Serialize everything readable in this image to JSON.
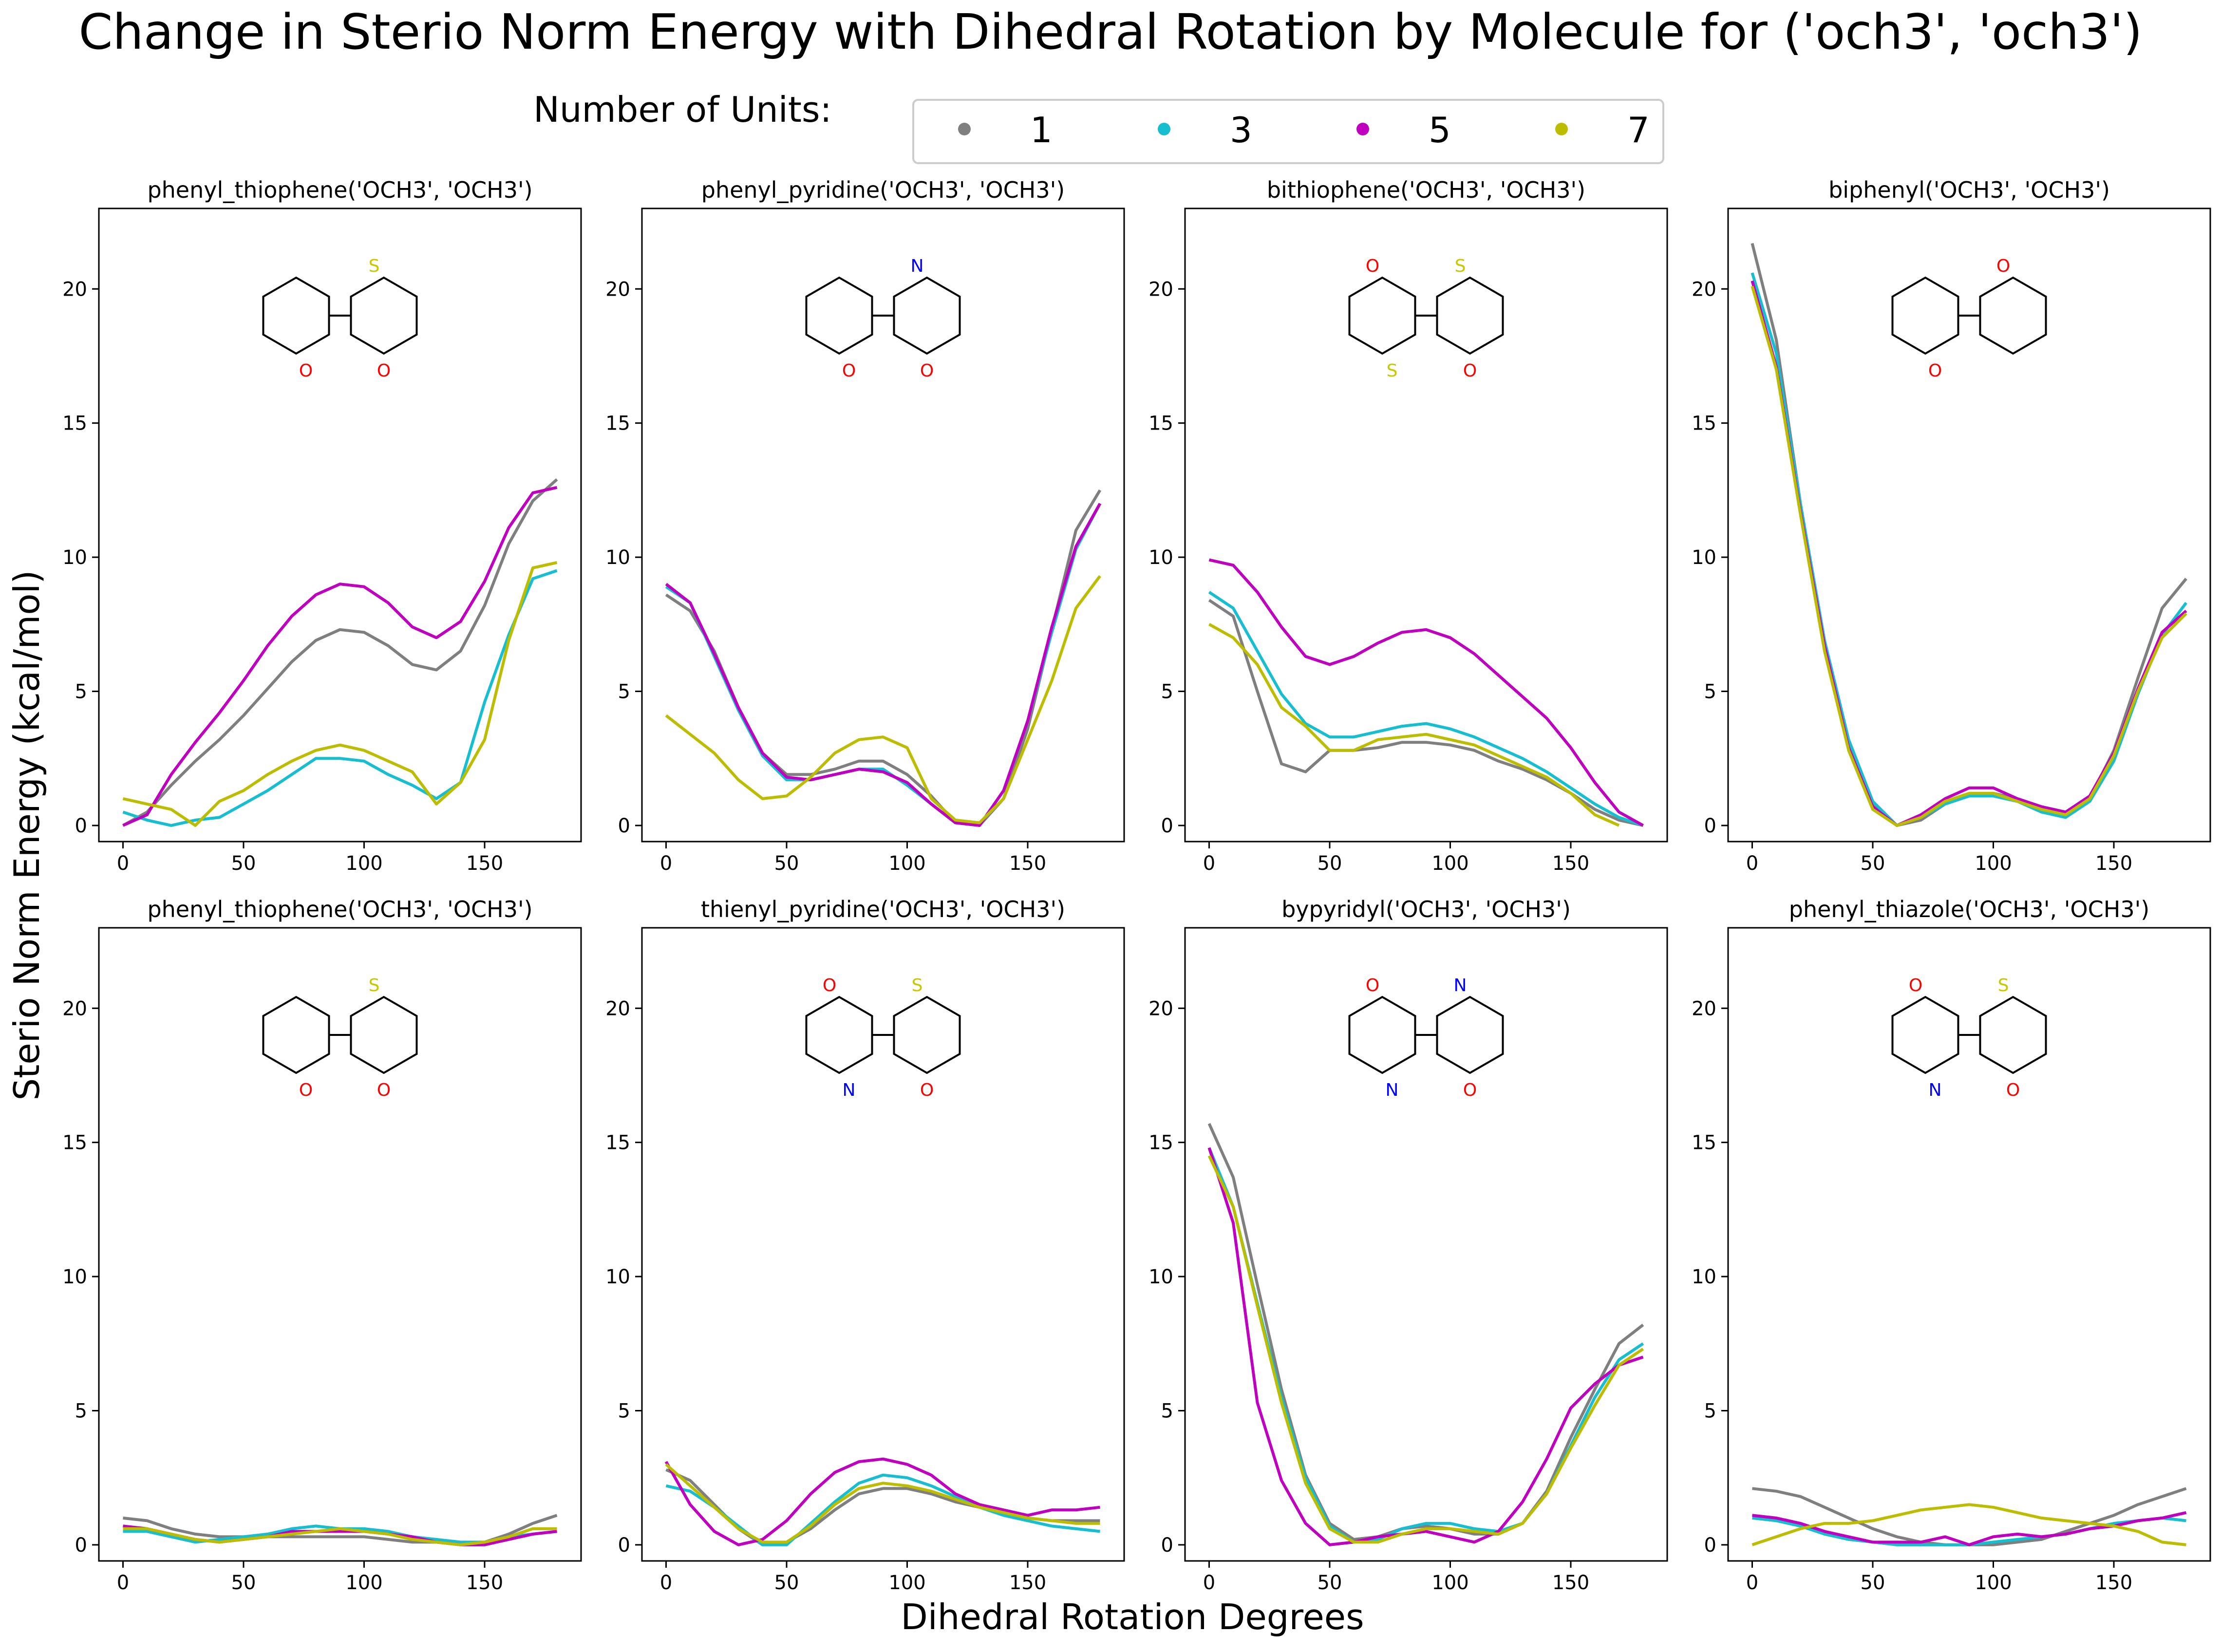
{
  "title": "Change in Sterio Norm Energy with Dihedral Rotation by Molecule for ('och3', 'och3')",
  "xlabel": "Dihedral Rotation Degrees",
  "ylabel": "Sterio Norm Energy (kcal/mol)",
  "legend": {
    "title": "Number of Units:",
    "placement": "top-center",
    "entries": [
      {
        "label": "1",
        "color": "#7f7f7f"
      },
      {
        "label": "3",
        "color": "#17becf"
      },
      {
        "label": "5",
        "color": "#bf00bf"
      },
      {
        "label": "7",
        "color": "#bcbd00"
      }
    ]
  },
  "chart_data": {
    "type": "line",
    "x": [
      0,
      10,
      20,
      30,
      40,
      50,
      60,
      70,
      80,
      90,
      100,
      110,
      120,
      130,
      140,
      150,
      160,
      170,
      180
    ],
    "x_ticks": [
      0,
      50,
      100,
      150
    ],
    "y_ticks": [
      0,
      5,
      10,
      15,
      20
    ],
    "xlim": [
      -10,
      190
    ],
    "ylim": [
      -0.6,
      23
    ],
    "grid": false,
    "panels": [
      {
        "title": "phenyl_thiophene('OCH3', 'OCH3')",
        "molecule_atoms": [
          "S",
          "O",
          "O"
        ],
        "series": [
          {
            "name": "1",
            "values": [
              0.0,
              0.5,
              1.5,
              2.4,
              3.2,
              4.1,
              5.1,
              6.1,
              6.9,
              7.3,
              7.2,
              6.7,
              6.0,
              5.8,
              6.5,
              8.2,
              10.5,
              12.1,
              12.9
            ]
          },
          {
            "name": "3",
            "values": [
              0.5,
              0.2,
              0.0,
              0.2,
              0.3,
              0.8,
              1.3,
              1.9,
              2.5,
              2.5,
              2.4,
              1.9,
              1.5,
              1.0,
              1.6,
              4.6,
              7.1,
              9.2,
              9.5
            ]
          },
          {
            "name": "5",
            "values": [
              0.0,
              0.4,
              1.9,
              3.1,
              4.2,
              5.4,
              6.7,
              7.8,
              8.6,
              9.0,
              8.9,
              8.3,
              7.4,
              7.0,
              7.6,
              9.1,
              11.1,
              12.4,
              12.6
            ]
          },
          {
            "name": "7",
            "values": [
              1.0,
              0.8,
              0.6,
              0.0,
              0.9,
              1.3,
              1.9,
              2.4,
              2.8,
              3.0,
              2.8,
              2.4,
              2.0,
              0.8,
              1.6,
              3.2,
              6.9,
              9.6,
              9.8
            ]
          }
        ]
      },
      {
        "title": "phenyl_pyridine('OCH3', 'OCH3')",
        "molecule_atoms": [
          "N",
          "O",
          "O"
        ],
        "series": [
          {
            "name": "1",
            "values": [
              8.6,
              8.0,
              6.5,
              4.4,
              2.7,
              1.9,
              1.9,
              2.1,
              2.4,
              2.4,
              1.9,
              1.1,
              0.1,
              0.0,
              1.0,
              3.6,
              7.3,
              11.0,
              12.5
            ]
          },
          {
            "name": "3",
            "values": [
              8.9,
              8.3,
              6.3,
              4.3,
              2.6,
              1.7,
              1.7,
              1.9,
              2.1,
              2.1,
              1.5,
              0.8,
              0.1,
              0.0,
              1.3,
              3.9,
              7.2,
              10.3,
              12.0
            ]
          },
          {
            "name": "5",
            "values": [
              9.0,
              8.3,
              6.4,
              4.4,
              2.7,
              1.8,
              1.7,
              1.9,
              2.1,
              2.0,
              1.6,
              0.8,
              0.1,
              0.0,
              1.3,
              3.9,
              7.4,
              10.4,
              12.0
            ]
          },
          {
            "name": "7",
            "values": [
              4.1,
              3.4,
              2.7,
              1.7,
              1.0,
              1.1,
              1.8,
              2.7,
              3.2,
              3.3,
              2.9,
              1.0,
              0.2,
              0.1,
              1.0,
              3.2,
              5.4,
              8.1,
              9.3
            ]
          }
        ]
      },
      {
        "title": "bithiophene('OCH3', 'OCH3')",
        "molecule_atoms": [
          "S",
          "S",
          "O",
          "O"
        ],
        "series": [
          {
            "name": "1",
            "values": [
              8.4,
              7.8,
              5.0,
              2.3,
              2.0,
              2.8,
              2.8,
              2.9,
              3.1,
              3.1,
              3.0,
              2.8,
              2.4,
              2.1,
              1.7,
              1.2,
              0.6,
              0.2,
              0.0
            ]
          },
          {
            "name": "3",
            "values": [
              8.7,
              8.1,
              6.5,
              4.9,
              3.8,
              3.3,
              3.3,
              3.5,
              3.7,
              3.8,
              3.6,
              3.3,
              2.9,
              2.5,
              2.0,
              1.4,
              0.8,
              0.3,
              0.0
            ]
          },
          {
            "name": "5",
            "values": [
              9.9,
              9.7,
              8.7,
              7.4,
              6.3,
              6.0,
              6.3,
              6.8,
              7.2,
              7.3,
              7.0,
              6.4,
              5.6,
              4.8,
              4.0,
              2.9,
              1.6,
              0.5,
              0.0
            ]
          },
          {
            "name": "7",
            "values": [
              7.5,
              7.0,
              6.0,
              4.4,
              3.7,
              2.8,
              2.8,
              3.2,
              3.3,
              3.4,
              3.2,
              3.0,
              2.6,
              2.2,
              1.8,
              1.2,
              0.4,
              0.0,
              null
            ]
          }
        ]
      },
      {
        "title": "biphenyl('OCH3', 'OCH3')",
        "molecule_atoms": [
          "O",
          "O"
        ],
        "series": [
          {
            "name": "1",
            "values": [
              21.7,
              18.1,
              12.0,
              6.8,
              3.0,
              0.8,
              0.0,
              0.2,
              0.8,
              1.1,
              1.2,
              1.0,
              0.7,
              0.5,
              1.0,
              2.8,
              5.5,
              8.1,
              9.2
            ]
          },
          {
            "name": "3",
            "values": [
              20.6,
              17.6,
              12.0,
              6.9,
              3.2,
              0.9,
              0.0,
              0.3,
              0.8,
              1.1,
              1.1,
              0.9,
              0.5,
              0.3,
              0.9,
              2.4,
              4.9,
              7.1,
              8.3
            ]
          },
          {
            "name": "5",
            "values": [
              20.3,
              17.1,
              11.7,
              6.7,
              2.9,
              0.7,
              0.0,
              0.4,
              1.0,
              1.4,
              1.4,
              1.0,
              0.7,
              0.5,
              1.1,
              2.7,
              5.1,
              7.2,
              8.0
            ]
          },
          {
            "name": "7",
            "values": [
              20.1,
              17.0,
              11.6,
              6.5,
              2.8,
              0.6,
              0.0,
              0.3,
              0.9,
              1.2,
              1.2,
              0.9,
              0.6,
              0.4,
              1.0,
              2.6,
              5.0,
              7.0,
              7.9
            ]
          }
        ]
      },
      {
        "title": "phenyl_thiophene('OCH3', 'OCH3')",
        "molecule_atoms": [
          "S",
          "O",
          "O"
        ],
        "series": [
          {
            "name": "1",
            "values": [
              1.0,
              0.9,
              0.6,
              0.4,
              0.3,
              0.3,
              0.3,
              0.3,
              0.3,
              0.3,
              0.3,
              0.2,
              0.1,
              0.1,
              0.0,
              0.1,
              0.4,
              0.8,
              1.1
            ]
          },
          {
            "name": "3",
            "values": [
              0.5,
              0.5,
              0.3,
              0.1,
              0.2,
              0.3,
              0.4,
              0.6,
              0.7,
              0.6,
              0.6,
              0.5,
              0.3,
              0.2,
              0.1,
              0.1,
              0.3,
              0.4,
              0.5
            ]
          },
          {
            "name": "5",
            "values": [
              0.7,
              0.6,
              0.4,
              0.2,
              0.1,
              0.2,
              0.3,
              0.5,
              0.5,
              0.5,
              0.5,
              0.4,
              0.3,
              0.1,
              0.0,
              0.0,
              0.2,
              0.4,
              0.5
            ]
          },
          {
            "name": "7",
            "values": [
              0.6,
              0.6,
              0.4,
              0.2,
              0.1,
              0.2,
              0.3,
              0.4,
              0.5,
              0.6,
              0.5,
              0.4,
              0.2,
              0.1,
              0.0,
              0.1,
              0.3,
              0.6,
              0.6
            ]
          }
        ]
      },
      {
        "title": "thienyl_pyridine('OCH3', 'OCH3')",
        "molecule_atoms": [
          "S",
          "N",
          "O",
          "O"
        ],
        "series": [
          {
            "name": "1",
            "values": [
              2.8,
              2.4,
              1.5,
              0.6,
              0.0,
              0.1,
              0.6,
              1.3,
              1.9,
              2.1,
              2.1,
              1.9,
              1.6,
              1.4,
              1.2,
              1.0,
              0.9,
              0.9,
              0.9
            ]
          },
          {
            "name": "3",
            "values": [
              2.2,
              2.0,
              1.4,
              0.7,
              0.0,
              0.0,
              0.8,
              1.6,
              2.3,
              2.6,
              2.5,
              2.2,
              1.8,
              1.4,
              1.1,
              0.9,
              0.7,
              0.6,
              0.5
            ]
          },
          {
            "name": "5",
            "values": [
              3.1,
              1.5,
              0.5,
              0.0,
              0.2,
              0.9,
              1.9,
              2.7,
              3.1,
              3.2,
              3.0,
              2.6,
              1.9,
              1.5,
              1.3,
              1.1,
              1.3,
              1.3,
              1.4
            ]
          },
          {
            "name": "7",
            "values": [
              3.0,
              2.2,
              1.4,
              0.6,
              0.1,
              0.1,
              0.7,
              1.5,
              2.1,
              2.3,
              2.2,
              2.0,
              1.7,
              1.4,
              1.2,
              1.0,
              0.9,
              0.8,
              0.8
            ]
          }
        ]
      },
      {
        "title": "bypyridyl('OCH3', 'OCH3')",
        "molecule_atoms": [
          "N",
          "N",
          "O",
          "O"
        ],
        "series": [
          {
            "name": "1",
            "values": [
              15.7,
              13.7,
              9.7,
              5.8,
              2.6,
              0.8,
              0.2,
              0.3,
              0.6,
              0.7,
              0.6,
              0.4,
              0.4,
              0.8,
              2.0,
              4.0,
              5.8,
              7.5,
              8.2
            ]
          },
          {
            "name": "3",
            "values": [
              14.8,
              12.6,
              9.0,
              5.5,
              2.5,
              0.7,
              0.1,
              0.2,
              0.6,
              0.8,
              0.8,
              0.6,
              0.5,
              0.8,
              1.9,
              3.7,
              5.5,
              6.9,
              7.5
            ]
          },
          {
            "name": "5",
            "values": [
              14.8,
              12.0,
              5.3,
              2.4,
              0.8,
              0.0,
              0.1,
              0.3,
              0.4,
              0.5,
              0.3,
              0.1,
              0.5,
              1.6,
              3.2,
              5.1,
              6.0,
              6.7,
              7.0
            ]
          },
          {
            "name": "7",
            "values": [
              14.5,
              12.6,
              8.9,
              5.3,
              2.3,
              0.6,
              0.1,
              0.1,
              0.4,
              0.6,
              0.6,
              0.5,
              0.4,
              0.8,
              1.9,
              3.6,
              5.2,
              6.7,
              7.3
            ]
          }
        ]
      },
      {
        "title": "phenyl_thiazole('OCH3', 'OCH3')",
        "molecule_atoms": [
          "S",
          "N",
          "O",
          "O"
        ],
        "series": [
          {
            "name": "1",
            "values": [
              2.1,
              2.0,
              1.8,
              1.4,
              1.0,
              0.6,
              0.3,
              0.1,
              0.0,
              0.0,
              0.0,
              0.1,
              0.2,
              0.5,
              0.8,
              1.1,
              1.5,
              1.8,
              2.1
            ]
          },
          {
            "name": "3",
            "values": [
              1.0,
              0.9,
              0.7,
              0.4,
              0.2,
              0.1,
              0.0,
              0.0,
              0.0,
              0.0,
              0.1,
              0.2,
              0.3,
              0.4,
              0.6,
              0.8,
              0.9,
              1.0,
              0.9
            ]
          },
          {
            "name": "5",
            "values": [
              1.1,
              1.0,
              0.8,
              0.5,
              0.3,
              0.1,
              0.1,
              0.1,
              0.3,
              0.0,
              0.3,
              0.4,
              0.3,
              0.4,
              0.6,
              0.7,
              0.9,
              1.0,
              1.2
            ]
          },
          {
            "name": "7",
            "values": [
              0.0,
              0.3,
              0.6,
              0.8,
              0.8,
              0.9,
              1.1,
              1.3,
              1.4,
              1.5,
              1.4,
              1.2,
              1.0,
              0.9,
              0.8,
              0.7,
              0.5,
              0.1,
              0.0
            ]
          }
        ]
      }
    ]
  }
}
